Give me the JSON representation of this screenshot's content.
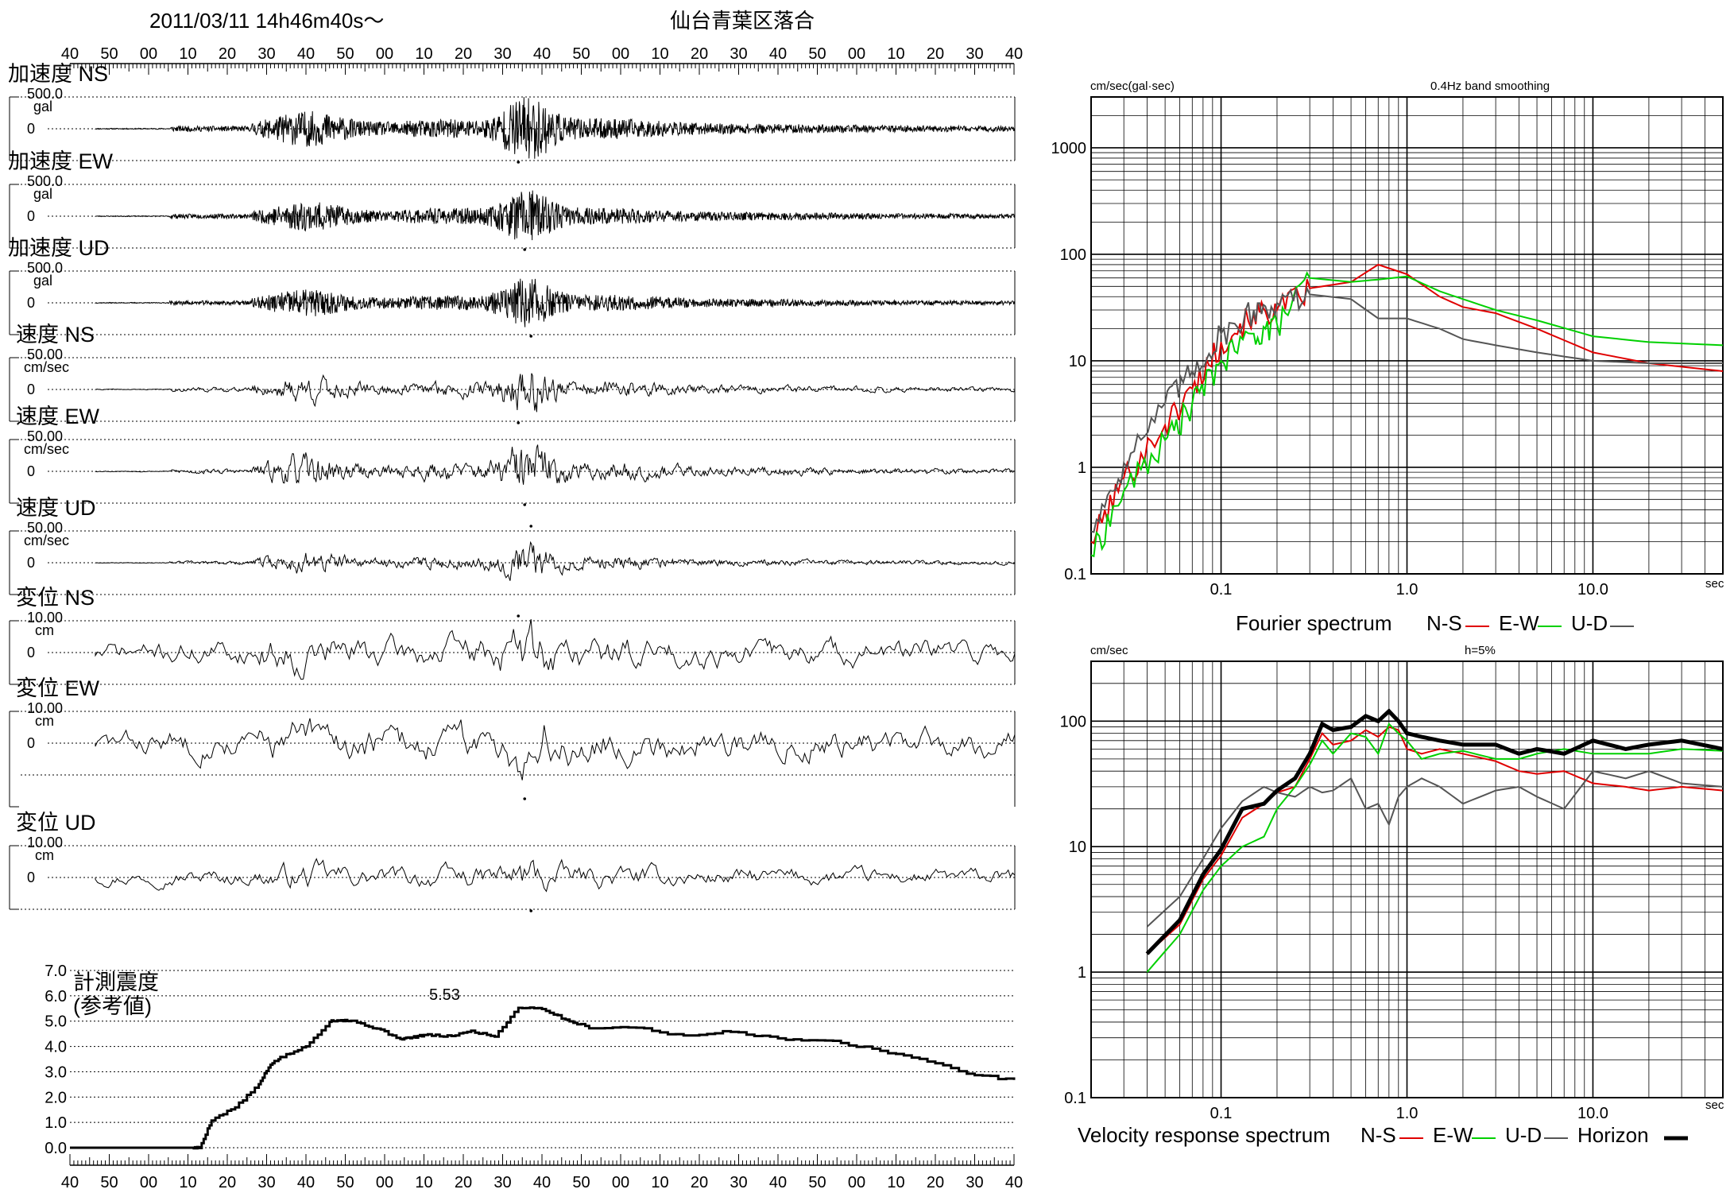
{
  "header": {
    "datetime": "2011/03/11  14h46m40s～",
    "station": "仙台青葉区落合"
  },
  "time_ticks": [
    "40",
    "50",
    "00",
    "10",
    "20",
    "30",
    "40",
    "50",
    "00",
    "10",
    "20",
    "30",
    "40",
    "50",
    "00",
    "10",
    "20",
    "30",
    "40",
    "50",
    "00",
    "10",
    "20",
    "30",
    "40"
  ],
  "waveforms": [
    {
      "label": "加速度 NS",
      "scale": "500.0",
      "unit": "gal",
      "zero": "0",
      "kind": "acc",
      "seed": 11,
      "pk": 0.9
    },
    {
      "label": "加速度 EW",
      "scale": "500.0",
      "unit": "gal",
      "zero": "0",
      "kind": "acc",
      "seed": 23,
      "pk": 0.75
    },
    {
      "label": "加速度 UD",
      "scale": "500.0",
      "unit": "gal",
      "zero": "0",
      "kind": "acc",
      "seed": 37,
      "pk": 0.7
    },
    {
      "label": "速度 NS",
      "scale": "50.00",
      "unit": "cm/sec",
      "zero": "0",
      "kind": "vel",
      "seed": 41,
      "pk": 0.55
    },
    {
      "label": "速度 EW",
      "scale": "50.00",
      "unit": "cm/sec",
      "zero": "0",
      "kind": "vel",
      "seed": 53,
      "pk": 0.65
    },
    {
      "label": "速度 UD",
      "scale": "50.00",
      "unit": "cm/sec",
      "zero": "0",
      "kind": "vel",
      "seed": 67,
      "pk": 0.45
    },
    {
      "label": "変位 NS",
      "scale": "10.00",
      "unit": "cm",
      "zero": "0",
      "kind": "dis",
      "seed": 71,
      "pk": 0.9
    },
    {
      "label": "変位 EW",
      "scale": "10.00",
      "unit": "cm",
      "zero": "0",
      "kind": "dis",
      "seed": 83,
      "pk": 1.0
    },
    {
      "label": "変位 UD",
      "scale": "10.00",
      "unit": "cm",
      "zero": "0",
      "kind": "dis",
      "seed": 97,
      "pk": 0.6
    }
  ],
  "intensity": {
    "label_line1": "計測震度",
    "label_line2": "(参考値)",
    "peak_label": "5.53",
    "y_ticks": [
      "7.0",
      "6.0",
      "5.0",
      "4.0",
      "3.0",
      "2.0",
      "1.0",
      "0.0"
    ]
  },
  "fourier": {
    "ylabel": "cm/sec(gal·sec)",
    "note": "0.4Hz band smoothing",
    "y_ticks": [
      "1000",
      "100",
      "10",
      "1",
      "0.1"
    ],
    "x_ticks": [
      "0.1",
      "1.0",
      "10.0"
    ],
    "x_unit": "sec",
    "caption": "Fourier spectrum",
    "legend": [
      "N-S",
      "E-W",
      "U-D"
    ]
  },
  "response": {
    "ylabel": "cm/sec",
    "note": "h=5%",
    "y_ticks": [
      "100",
      "10",
      "1",
      "0.1"
    ],
    "x_ticks": [
      "0.1",
      "1.0",
      "10.0"
    ],
    "x_unit": "sec",
    "caption": "Velocity response spectrum",
    "legend": [
      "N-S",
      "E-W",
      "U-D",
      "Horizon"
    ]
  },
  "colors": {
    "ns": "#e00000",
    "ew": "#00d000",
    "ud": "#555555",
    "horizon": "#000000"
  },
  "chart_data": [
    {
      "type": "line",
      "description_key": "intensity",
      "x_unit": "time",
      "x": [
        52,
        55,
        60,
        70,
        80,
        85,
        90,
        100,
        110,
        115,
        120,
        130,
        140,
        145,
        150,
        160,
        170,
        180,
        190,
        200,
        210,
        220,
        240,
        260,
        280,
        300,
        320,
        340,
        360,
        380,
        400
      ],
      "values": [
        0.0,
        0.0,
        1.1,
        1.6,
        2.5,
        3.3,
        3.6,
        4.0,
        5.0,
        5.05,
        5.0,
        4.7,
        4.3,
        4.35,
        4.45,
        4.4,
        4.6,
        4.4,
        5.55,
        5.5,
        5.05,
        4.75,
        4.75,
        4.4,
        4.6,
        4.3,
        4.25,
        3.9,
        3.5,
        2.95,
        2.65
      ],
      "ylim": [
        0,
        7
      ]
    },
    {
      "type": "line",
      "description_key": "fourier",
      "x_scale": "log",
      "y_scale": "log",
      "xlim": [
        0.02,
        50
      ],
      "ylim": [
        0.1,
        3000
      ],
      "x": [
        0.02,
        0.03,
        0.05,
        0.07,
        0.1,
        0.15,
        0.2,
        0.3,
        0.5,
        0.7,
        1.0,
        1.5,
        2.0,
        3.0,
        5.0,
        10.0,
        20.0,
        50.0
      ],
      "series": [
        {
          "name": "N-S",
          "values": [
            0.2,
            0.8,
            2.5,
            5.5,
            15,
            28,
            30,
            48,
            55,
            80,
            65,
            40,
            32,
            28,
            20,
            12,
            9.5,
            8
          ]
        },
        {
          "name": "E-W",
          "values": [
            0.15,
            0.6,
            1.8,
            4.0,
            10,
            18,
            22,
            60,
            55,
            58,
            62,
            45,
            38,
            30,
            24,
            17,
            15,
            14
          ]
        },
        {
          "name": "U-D",
          "values": [
            0.25,
            1.1,
            4.0,
            8.0,
            18,
            30,
            35,
            42,
            38,
            25,
            25,
            20,
            16,
            14,
            12,
            10,
            9.5,
            9.5
          ]
        }
      ]
    },
    {
      "type": "line",
      "description_key": "response",
      "x_scale": "log",
      "y_scale": "log",
      "xlim": [
        0.02,
        50
      ],
      "ylim": [
        0.1,
        300
      ],
      "x": [
        0.04,
        0.06,
        0.08,
        0.1,
        0.13,
        0.17,
        0.2,
        0.25,
        0.3,
        0.35,
        0.4,
        0.5,
        0.6,
        0.7,
        0.8,
        0.9,
        1.0,
        1.2,
        1.5,
        2.0,
        3.0,
        4.0,
        5.0,
        7.0,
        10.0,
        15.0,
        20.0,
        30.0,
        50.0
      ],
      "series": [
        {
          "name": "N-S",
          "values": [
            1.4,
            2.4,
            5.5,
            8.5,
            17,
            22,
            27,
            30,
            50,
            80,
            65,
            70,
            85,
            75,
            90,
            85,
            60,
            55,
            60,
            55,
            48,
            40,
            38,
            40,
            32,
            30,
            28,
            30,
            28
          ]
        },
        {
          "name": "E-W",
          "values": [
            1.0,
            2.0,
            4.5,
            7.0,
            10,
            12,
            20,
            30,
            45,
            70,
            55,
            80,
            75,
            55,
            95,
            80,
            70,
            50,
            55,
            58,
            50,
            50,
            55,
            60,
            55,
            55,
            55,
            60,
            58
          ]
        },
        {
          "name": "U-D",
          "values": [
            2.3,
            4.0,
            8.0,
            14,
            23,
            30,
            27,
            25,
            30,
            27,
            28,
            35,
            20,
            22,
            15,
            25,
            30,
            35,
            30,
            22,
            28,
            30,
            25,
            20,
            40,
            35,
            40,
            32,
            30
          ]
        },
        {
          "name": "Horizon",
          "values": [
            1.4,
            2.6,
            6.0,
            9.5,
            20,
            22,
            28,
            35,
            55,
            95,
            85,
            90,
            110,
            100,
            120,
            100,
            80,
            75,
            70,
            65,
            65,
            55,
            60,
            55,
            70,
            60,
            65,
            70,
            60
          ]
        }
      ]
    }
  ]
}
